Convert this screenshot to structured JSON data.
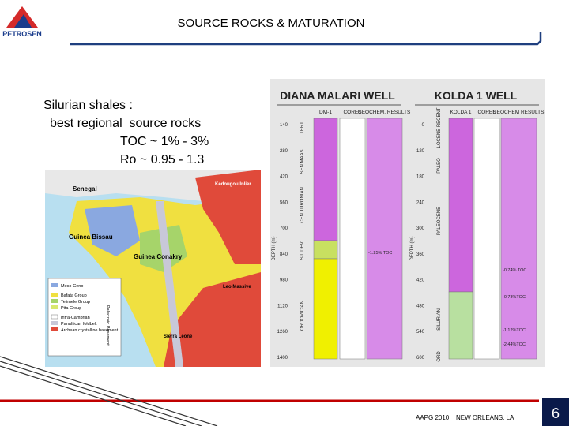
{
  "header": {
    "logo": "PETROSEN",
    "title": "SOURCE ROCKS & MATURATION"
  },
  "text": {
    "lines": [
      "Silurian shales :",
      "best regional  source rocks",
      "TOC ~ 1% - 3%",
      "Ro ~ 0.95 - 1.3"
    ]
  },
  "map": {
    "labels": [
      "Senegal",
      "Guinea Bissau",
      "Guinea Conakry",
      "Sierra Leone",
      "Kedougou Inlier",
      "Leo Massive"
    ],
    "legend": [
      "Meso-Ceno",
      "Bafata Group",
      "Telimele Group",
      "Pita Group",
      "Infra-Cambrian",
      "Panafrican foldbelt",
      "Archean crystalline basement"
    ],
    "groups": [
      "Paleozoic",
      "Basement"
    ]
  },
  "wells": [
    {
      "title": "DIANA MALARI WELL",
      "columns": [
        "DM-1",
        "CORES",
        "GEOCHEM. RESULTS"
      ],
      "depth_axis": "DEPTH (m)",
      "depths": [
        "140",
        "280",
        "420",
        "560",
        "700",
        "840",
        "980",
        "1120",
        "1260",
        "1400"
      ],
      "stages": [
        "TERT",
        "SEN MAAS",
        "CEN TURONIAN",
        "DEV.",
        "SIL.",
        "ORDOVICIAN"
      ],
      "results": [
        "-1.25% TOC"
      ]
    },
    {
      "title": "KOLDA 1 WELL",
      "columns": [
        "KOLDA 1",
        "CORES",
        "GEOCHEM RESULTS"
      ],
      "depth_axis": "DEPTH (m)",
      "depths": [
        "0",
        "120",
        "180",
        "240",
        "300",
        "360",
        "420",
        "480",
        "540",
        "600"
      ],
      "stages": [
        "LOCENE RECENT",
        "PALEO",
        "PALEOCENE",
        "SILURIAN",
        "ORD"
      ],
      "results": [
        "-0.74% TOC",
        "-0.73%TOC",
        "-1.12%TOC",
        "-2.44%TOC"
      ]
    }
  ],
  "footer": {
    "event": "AAPG 2010",
    "place": "NEW ORLEANS, LA",
    "page": 6
  }
}
